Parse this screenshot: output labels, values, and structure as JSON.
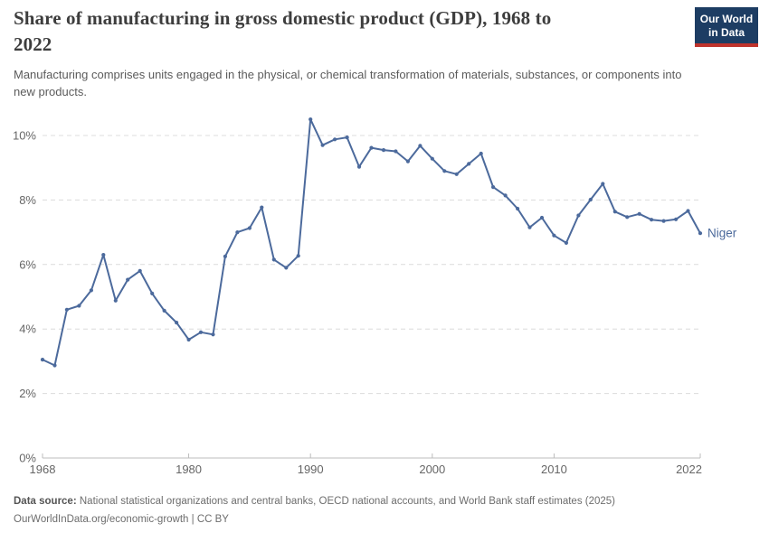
{
  "header": {
    "title": "Share of manufacturing in gross domestic product (GDP), 1968 to 2022",
    "subtitle": "Manufacturing comprises units engaged in the physical, or chemical transformation of materials, substances, or components into new products."
  },
  "logo": {
    "line1": "Our World",
    "line2": "in Data",
    "bg_color": "#1d3d63",
    "accent_color": "#bf332c"
  },
  "chart_data": {
    "type": "line",
    "title": "Share of manufacturing in gross domestic product (GDP), 1968 to 2022",
    "entity": "Niger",
    "unit": "%",
    "xlabel": "",
    "ylabel": "",
    "ylim": [
      0,
      10.5
    ],
    "grid": "horizontal-dashed",
    "legend_position": "end-of-line-label",
    "xticks": [
      1968,
      1980,
      1990,
      2000,
      2010,
      2022
    ],
    "yticks": {
      "values": [
        0,
        2,
        4,
        6,
        8,
        10
      ],
      "labels": [
        "0%",
        "2%",
        "4%",
        "6%",
        "8%",
        "10%"
      ]
    },
    "x": [
      1968,
      1969,
      1970,
      1971,
      1972,
      1973,
      1974,
      1975,
      1976,
      1977,
      1978,
      1979,
      1980,
      1981,
      1982,
      1983,
      1984,
      1985,
      1986,
      1987,
      1988,
      1989,
      1990,
      1991,
      1992,
      1993,
      1994,
      1995,
      1996,
      1997,
      1998,
      1999,
      2000,
      2001,
      2002,
      2003,
      2004,
      2005,
      2006,
      2007,
      2008,
      2009,
      2010,
      2011,
      2012,
      2013,
      2014,
      2015,
      2016,
      2017,
      2018,
      2019,
      2020,
      2021,
      2022
    ],
    "series": [
      {
        "name": "Niger",
        "color": "#4c6a9c",
        "values": [
          3.05,
          2.87,
          4.6,
          4.72,
          5.2,
          6.3,
          4.88,
          5.53,
          5.8,
          5.1,
          4.57,
          4.2,
          3.67,
          3.9,
          3.83,
          6.25,
          7.0,
          7.13,
          7.77,
          6.15,
          5.9,
          6.27,
          10.5,
          9.7,
          9.88,
          9.94,
          9.03,
          9.62,
          9.55,
          9.51,
          9.2,
          9.68,
          9.28,
          8.9,
          8.8,
          9.12,
          9.44,
          8.4,
          8.14,
          7.73,
          7.15,
          7.45,
          6.9,
          6.67,
          7.52,
          8.01,
          8.5,
          7.64,
          7.47,
          7.57,
          7.39,
          7.35,
          7.4,
          7.66,
          6.97
        ]
      }
    ]
  },
  "footer": {
    "source_label": "Data source:",
    "source_text": "National statistical organizations and central banks, OECD national accounts, and World Bank staff estimates (2025)",
    "license_line": "OurWorldInData.org/economic-growth | CC BY"
  }
}
